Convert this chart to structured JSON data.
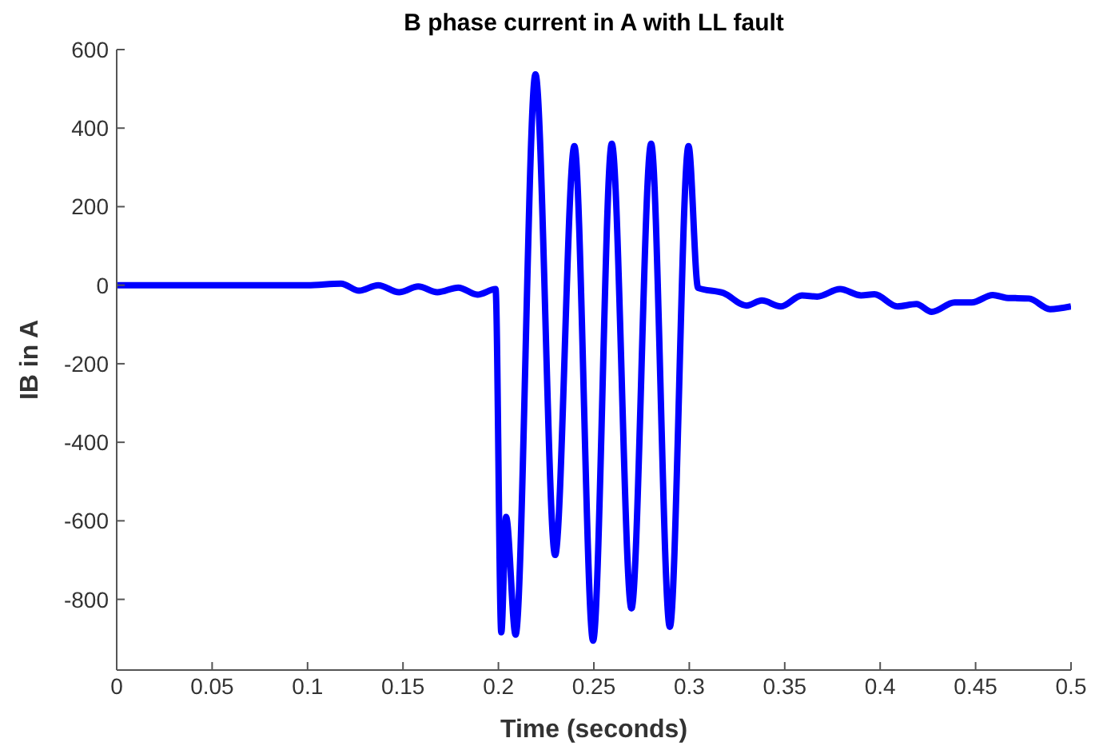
{
  "chart_data": {
    "type": "line",
    "title": "B phase current in A with LL fault",
    "xlabel": "Time (seconds)",
    "ylabel": "IB in A",
    "x": [
      0,
      0.05,
      0.1,
      0.1175,
      0.127,
      0.137,
      0.148,
      0.158,
      0.168,
      0.179,
      0.189,
      0.1985,
      0.2015,
      0.204,
      0.209,
      0.2194,
      0.2297,
      0.2398,
      0.2496,
      0.2594,
      0.2697,
      0.28,
      0.2898,
      0.2996,
      0.3046,
      0.318,
      0.33,
      0.338,
      0.348,
      0.359,
      0.367,
      0.379,
      0.39,
      0.397,
      0.409,
      0.419,
      0.427,
      0.439,
      0.448,
      0.459,
      0.466,
      0.478,
      0.489,
      0.5
    ],
    "series": [
      {
        "color": "#0000ff",
        "values": [
          0,
          0,
          0,
          4,
          -14,
          0,
          -18,
          -3,
          -18,
          -6,
          -24,
          -10,
          -884,
          -590,
          -890,
          537,
          -687,
          354,
          -905,
          360,
          -823,
          360,
          -870,
          354,
          -7,
          -20,
          -52,
          -39,
          -54,
          -26,
          -29,
          -10,
          -26,
          -23,
          -54,
          -48,
          -68,
          -44,
          -44,
          -25,
          -32,
          -34,
          -61,
          -54
        ]
      }
    ],
    "xlim": [
      0,
      0.5
    ],
    "xticks": [
      0,
      0.05,
      0.1,
      0.15,
      0.2,
      0.25,
      0.3,
      0.35,
      0.4,
      0.45,
      0.5
    ],
    "ylim": [
      -980,
      600
    ],
    "yticks": [
      -800,
      -600,
      -400,
      -200,
      0,
      200,
      400,
      600
    ],
    "grid": false,
    "legend": false,
    "marker": "none",
    "line_style": "solid"
  }
}
